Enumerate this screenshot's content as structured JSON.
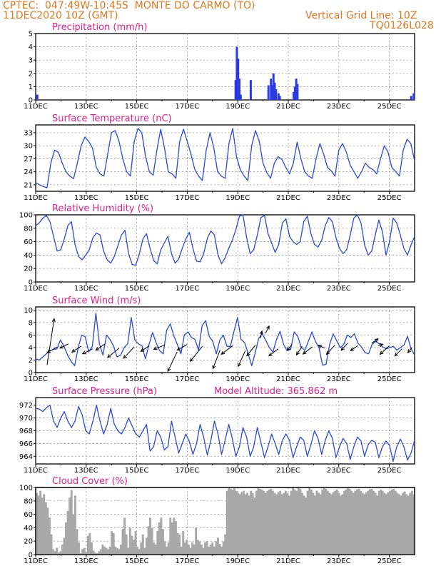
{
  "header": {
    "line1": "CPTEC:  047:49W-10:45S  MONTE DO CARMO (TO)",
    "line2": "11DEC2020 10Z (GMT)",
    "grid_note": "Vertical Grid Line: 10Z",
    "model_code": "TQ0126L028"
  },
  "colors": {
    "header": "#e07820",
    "title": "#e0208a",
    "line": "#2a48d8",
    "bar": "#2a3ae0",
    "cloud": "#a8a8a8"
  },
  "x_ticks": [
    "11DEC",
    "13DEC",
    "15DEC",
    "17DEC",
    "19DEC",
    "21DEC",
    "23DEC",
    "25DEC"
  ],
  "chart_data": [
    {
      "type": "bar",
      "title": "Precipitation (mm/h)",
      "ylim": [
        0,
        5
      ],
      "yticks": [
        0,
        1,
        2,
        3,
        4,
        5
      ],
      "x_range_days": [
        0,
        15
      ],
      "x": [
        0.05,
        7.9,
        7.95,
        8.0,
        8.05,
        8.1,
        8.5,
        9.2,
        9.3,
        9.35,
        9.4,
        9.45,
        9.5,
        9.6,
        9.65,
        10.2,
        10.25,
        10.3,
        10.35,
        14.85,
        14.95
      ],
      "values": [
        0.4,
        1.5,
        4.0,
        3.1,
        1.6,
        0.4,
        1.5,
        1.1,
        1.6,
        1.1,
        2.0,
        1.3,
        0.8,
        0.5,
        0.3,
        0.6,
        1.0,
        1.6,
        1.2,
        0.3,
        0.5
      ]
    },
    {
      "type": "line",
      "title": "Surface Temperature (nC)",
      "ylim": [
        19.5,
        34.8
      ],
      "yticks": [
        21,
        24,
        27,
        30,
        33
      ],
      "x_range_days": [
        0,
        15
      ],
      "series": [
        {
          "values": [
            21.5,
            21,
            20.6,
            20.3,
            26,
            29,
            28.5,
            26,
            24,
            23,
            22.4,
            26,
            30,
            32,
            31,
            29.5,
            25,
            23.5,
            23,
            28,
            33,
            33.5,
            31,
            27,
            24,
            23,
            31,
            34,
            33,
            27.5,
            24,
            23.2,
            29,
            33.8,
            29.5,
            24,
            23.5,
            22.5,
            31,
            33.8,
            31,
            28,
            24.5,
            23,
            22,
            29,
            33,
            29.5,
            24,
            23,
            22.5,
            30.5,
            34,
            27.5,
            24.5,
            23,
            22,
            30,
            33.5,
            31,
            26,
            23.8,
            22.5,
            26,
            27.5,
            26.8,
            25,
            23.5,
            26,
            30.8,
            27,
            24,
            23,
            22.5,
            27,
            30.5,
            28,
            25,
            24.2,
            23,
            29,
            30.5,
            28.5,
            25.5,
            24,
            22.5,
            24,
            26,
            25,
            24.5,
            23.5,
            27,
            30,
            28.5,
            25,
            24,
            23,
            29,
            31.5,
            30.5,
            26.5
          ]
        }
      ]
    },
    {
      "type": "line",
      "title": "Relative Humidity (%)",
      "ylim": [
        0,
        100
      ],
      "yticks": [
        0,
        20,
        40,
        60,
        80,
        100
      ],
      "x_range_days": [
        0,
        15
      ],
      "series": [
        {
          "values": [
            84,
            88,
            95,
            99,
            90,
            68,
            46,
            48,
            64,
            84,
            90,
            56,
            38,
            33,
            40,
            48,
            66,
            73,
            70,
            46,
            33,
            28,
            38,
            54,
            70,
            77,
            42,
            26,
            25,
            42,
            64,
            72,
            50,
            32,
            27,
            48,
            58,
            68,
            42,
            28,
            34,
            50,
            64,
            74,
            50,
            31,
            30,
            42,
            65,
            76,
            70,
            40,
            27,
            36,
            50,
            62,
            78,
            98,
            100,
            66,
            42,
            48,
            70,
            96,
            99,
            72,
            58,
            44,
            56,
            88,
            94,
            68,
            60,
            56,
            60,
            90,
            98,
            72,
            56,
            52,
            62,
            84,
            96,
            90,
            66,
            50,
            42,
            48,
            70,
            95,
            100,
            88,
            55,
            40,
            46,
            70,
            92,
            75,
            40,
            60,
            95,
            88,
            70,
            50,
            40,
            55,
            68
          ]
        }
      ]
    },
    {
      "type": "line",
      "title": "Surface Wind (m/s)",
      "ylim": [
        0,
        10.5
      ],
      "yticks": [
        0,
        2,
        4,
        6,
        8,
        10
      ],
      "x_range_days": [
        0,
        15
      ],
      "series": [
        {
          "values": [
            2.2,
            2,
            2.5,
            3,
            3.5,
            3.7,
            3.8,
            5.2,
            4.2,
            2.8,
            1.8,
            1.1,
            4,
            6,
            5.7,
            3.3,
            4.2,
            9.5,
            4.6,
            2.8,
            6,
            5.3,
            4.2,
            2.5,
            2.8,
            4,
            4.6,
            8.8,
            5.2,
            4.6,
            4.3,
            2.2,
            4.5,
            6.4,
            4.8,
            3.5,
            3,
            6.8,
            7.8,
            5.9,
            4.5,
            3,
            6,
            6.5,
            5.6,
            5.3,
            3.6,
            7.5,
            8.3,
            5.8,
            5,
            3,
            5.2,
            6,
            4.2,
            4.2,
            6.6,
            8.8,
            5.3,
            4.8,
            3,
            1.1,
            3.2,
            5.5,
            6.2,
            5.1,
            4,
            3.3,
            5.3,
            6.6,
            4.5,
            3.5,
            3.7,
            6.5,
            5.8,
            4,
            3.6,
            5,
            6.5,
            5,
            4,
            1.2,
            1.3,
            4.5,
            6.2,
            5.1,
            4,
            4.5,
            6,
            5.6,
            6.2,
            4.7,
            4.1,
            3.2,
            3,
            4.5,
            5,
            4.6,
            4.1,
            3.8,
            4,
            4.2,
            3.6,
            4,
            4.4,
            5.8,
            3.8,
            2.8
          ]
        }
      ],
      "vectors": [
        [
          0.45,
          1.2,
          1.0,
          6.5
        ],
        [
          0.85,
          4.1,
          -1.4,
          -0.8
        ],
        [
          1.3,
          4.6,
          -1.2,
          -0.6
        ],
        [
          1.8,
          4.2,
          -1.3,
          -0.8
        ],
        [
          2.25,
          3.8,
          -1.4,
          -0.7
        ],
        [
          2.75,
          4.6,
          -1.3,
          -0.9
        ],
        [
          3.3,
          3.9,
          -1.6,
          -1.3
        ],
        [
          3.9,
          4.1,
          -1.5,
          -1.6
        ],
        [
          4.5,
          4.3,
          -1.2,
          -0.8
        ],
        [
          5.1,
          4.4,
          -1.5,
          -0.6
        ],
        [
          5.6,
          3.3,
          -1.3,
          -2.7
        ],
        [
          6.0,
          4.5,
          -1.4,
          -0.8
        ],
        [
          6.6,
          4.2,
          -1.7,
          -2.1
        ],
        [
          7.3,
          3.6,
          -1.0,
          -2.6
        ],
        [
          7.8,
          4.3,
          -1.6,
          -1.2
        ],
        [
          8.3,
          3.5,
          -1.0,
          -2.2
        ],
        [
          8.7,
          4.4,
          -1.2,
          -1.5
        ],
        [
          8.9,
          5.5,
          0.2,
          1.0
        ],
        [
          9.1,
          6.3,
          0.5,
          1.0
        ],
        [
          9.6,
          3.8,
          -1.3,
          -1.0
        ],
        [
          10.15,
          4.5,
          -0.7,
          -0.8
        ],
        [
          10.55,
          4.2,
          -0.8,
          -1.2
        ],
        [
          10.95,
          4.1,
          -1.3,
          -1.0
        ],
        [
          11.45,
          3.9,
          -0.9,
          0.4
        ],
        [
          11.85,
          4.4,
          -1.2,
          -1.3
        ],
        [
          12.35,
          4.7,
          -0.9,
          -1.0
        ],
        [
          12.75,
          4.3,
          -1.0,
          -0.7
        ],
        [
          13.3,
          4.7,
          0.9,
          0.6
        ],
        [
          13.55,
          4.3,
          0.7,
          0.2
        ],
        [
          14.0,
          4.3,
          -1.3,
          -1.2
        ],
        [
          14.5,
          3.8,
          -1.0,
          -1.0
        ],
        [
          14.9,
          4.0,
          -0.6,
          -0.7
        ]
      ]
    },
    {
      "type": "line",
      "title": "Surface Pressure (hPa)",
      "annotation": "Model Altitude: 365.862 m",
      "ylim": [
        962.8,
        973.2
      ],
      "yticks": [
        964,
        966,
        968,
        970,
        972
      ],
      "x_range_days": [
        0,
        15
      ],
      "series": [
        {
          "values": [
            971.5,
            971.4,
            971,
            971.6,
            972,
            969.5,
            968.5,
            970,
            971,
            969.5,
            968.5,
            969.5,
            971.8,
            970.5,
            968,
            967.5,
            969.5,
            972,
            969.5,
            967.5,
            969,
            971.5,
            969,
            968,
            967.5,
            968.5,
            970,
            968.7,
            967.5,
            967,
            968,
            969,
            964.8,
            965.5,
            968,
            967,
            965,
            965.5,
            969.5,
            967,
            964.5,
            966,
            967.5,
            966.3,
            964.3,
            966,
            969,
            967,
            964.2,
            966.5,
            969.5,
            967.5,
            964.3,
            966.5,
            969,
            966.8,
            964,
            965.5,
            968.5,
            967,
            964,
            965.5,
            968.5,
            966.2,
            963.8,
            965.5,
            967.5,
            966,
            964.3,
            966.5,
            967.5,
            966.5,
            963.8,
            965.5,
            967,
            966.5,
            964,
            965.8,
            968,
            966.8,
            964.3,
            966.5,
            968,
            966.8,
            963.8,
            965.5,
            966.8,
            966,
            963.5,
            965.5,
            967,
            966.4,
            964,
            965.8,
            966.5,
            966.2,
            963.8,
            965.5,
            966.4,
            965.7,
            963.2,
            965.5,
            966.7,
            965.5,
            963.4,
            964.5,
            966.5
          ]
        }
      ]
    },
    {
      "type": "bar",
      "title": "Cloud Cover (%)",
      "ylim": [
        0,
        100
      ],
      "yticks": [
        0,
        20,
        40,
        60,
        80,
        100
      ],
      "x_range_days": [
        0,
        15
      ],
      "values": [
        92,
        88,
        95,
        85,
        90,
        78,
        70,
        55,
        30,
        8,
        5,
        10,
        3,
        5,
        15,
        25,
        48,
        65,
        85,
        96,
        60,
        88,
        38,
        18,
        2,
        8,
        10,
        4,
        28,
        32,
        18,
        6,
        3,
        2,
        5,
        8,
        15,
        12,
        10,
        8,
        12,
        35,
        32,
        12,
        10,
        8,
        15,
        38,
        55,
        30,
        10,
        40,
        28,
        22,
        35,
        12,
        8,
        18,
        30,
        10,
        25,
        42,
        55,
        40,
        18,
        15,
        35,
        48,
        55,
        38,
        20,
        12,
        18,
        55,
        48,
        55,
        50,
        32,
        30,
        12,
        35,
        18,
        22,
        15,
        10,
        18,
        15,
        40,
        22,
        20,
        15,
        10,
        18,
        20,
        12,
        15,
        18,
        12,
        20,
        25,
        16,
        12,
        20,
        30,
        95,
        100,
        98,
        97,
        100,
        95,
        92,
        90,
        93,
        95,
        90,
        92,
        88,
        95,
        92,
        85,
        95,
        100,
        98,
        97,
        95,
        92,
        95,
        97,
        98,
        95,
        92,
        90,
        93,
        95,
        90,
        92,
        95,
        92,
        88,
        95,
        100,
        97,
        95,
        100,
        98,
        92,
        88,
        85,
        95,
        100,
        97,
        92,
        88,
        95,
        92,
        90,
        97,
        100,
        98,
        95,
        92,
        90,
        93,
        95,
        97,
        92,
        88,
        90,
        95,
        97,
        100,
        98,
        95,
        92,
        95,
        97,
        98,
        95,
        92,
        90,
        93,
        95,
        97,
        98,
        95,
        92,
        88,
        95,
        97,
        95,
        92,
        90,
        93,
        95,
        97,
        98,
        95,
        92,
        90,
        88,
        92,
        94,
        90,
        88,
        92,
        95,
        90
      ]
    }
  ]
}
